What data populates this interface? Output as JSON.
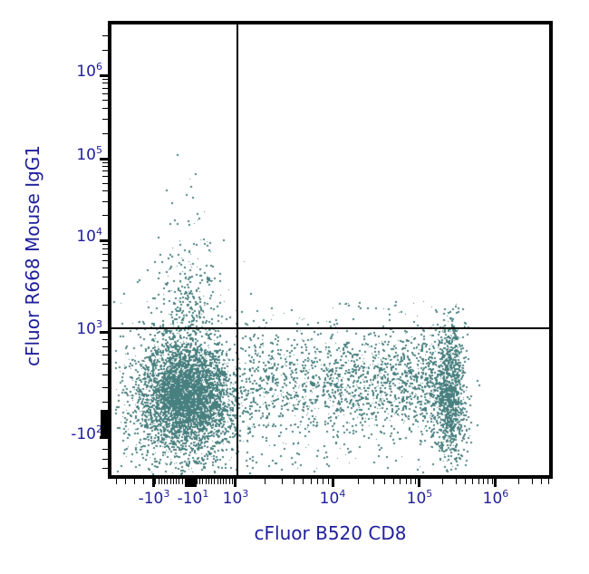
{
  "chart_data": {
    "type": "scatter",
    "subtype": "flow-cytometry-dot-plot",
    "title": "",
    "xlabel": "cFluor B520 CD8",
    "ylabel": "cFluor R668 Mouse IgG1",
    "x_scale": "biexponential",
    "y_scale": "biexponential",
    "grid": false,
    "legend": false,
    "point_color": "#487f7f",
    "axis_color": "#000000",
    "label_color": "#1f1f9c",
    "x_ticks": [
      {
        "base": "-10",
        "exp": "3",
        "frac": 0.0973
      },
      {
        "base": "-10",
        "exp": "1",
        "frac": 0.1863
      },
      {
        "base": "10",
        "exp": "3",
        "frac": 0.2836
      },
      {
        "base": "10",
        "exp": "4",
        "frac": 0.5052
      },
      {
        "base": "10",
        "exp": "5",
        "frac": 0.7039
      },
      {
        "base": "10",
        "exp": "6",
        "frac": 0.8778
      }
    ],
    "y_ticks": [
      {
        "base": "10",
        "exp": "6",
        "frac": 0.1127
      },
      {
        "base": "10",
        "exp": "5",
        "frac": 0.2978
      },
      {
        "base": "10",
        "exp": "4",
        "frac": 0.4789
      },
      {
        "base": "10",
        "exp": "3",
        "frac": 0.6841
      },
      {
        "base": "-10",
        "exp": "2",
        "frac": 0.9175
      }
    ],
    "quadrant_gate": {
      "x_frac": 0.2878,
      "y_frac": 0.674,
      "x_value": "1e3",
      "y_value": "1.2e3"
    },
    "populations": [
      {
        "name": "cd8neg-igg1neg-core",
        "type": "gauss",
        "cx": 0.168,
        "cy": 0.823,
        "sx": 0.054,
        "sy": 0.0624,
        "n": 4200
      },
      {
        "name": "cd8neg-halo",
        "type": "gauss",
        "cx": 0.168,
        "cy": 0.826,
        "sx": 0.096,
        "sy": 0.106,
        "n": 380
      },
      {
        "name": "igg1-upward-tail",
        "type": "tailup",
        "cx": 0.176,
        "sx": 0.036,
        "base_y": 0.686,
        "len": 0.111,
        "min_y": 0.29,
        "n": 270
      },
      {
        "name": "cd8-mid-band",
        "type": "band",
        "x0": 0.294,
        "x1": 0.739,
        "bias": 0.8,
        "cy": 0.795,
        "sy": 0.062,
        "y_min": 0.617,
        "y_max": 0.985,
        "n": 1600
      },
      {
        "name": "cd8-bright-cluster",
        "type": "gauss",
        "cx": 0.77,
        "cy": 0.815,
        "sx": 0.0186,
        "sy": 0.0765,
        "n": 1280,
        "y_min": 0.612,
        "y_max": 0.99
      },
      {
        "name": "above-gate-scatter",
        "type": "uniform",
        "x0": 0.3,
        "x1": 0.79,
        "y0": 0.614,
        "y1": 0.672,
        "n": 28
      },
      {
        "name": "bottom-scatter",
        "type": "uniform",
        "x0": 0.04,
        "x1": 0.8,
        "y0": 0.92,
        "y1": 0.995,
        "n": 70
      },
      {
        "name": "left-edge-scatter",
        "type": "uniform",
        "x0": 0.004,
        "x1": 0.055,
        "y0": 0.68,
        "y1": 0.99,
        "n": 28
      },
      {
        "name": "high-igg1-outliers",
        "type": "points",
        "pts": [
          [
            0.149,
            0.288
          ],
          [
            0.18,
            0.358
          ],
          [
            0.124,
            0.366
          ],
          [
            0.137,
            0.394
          ],
          [
            0.211,
            0.414
          ],
          [
            0.155,
            0.479
          ],
          [
            0.217,
            0.481
          ],
          [
            0.19,
            0.33
          ]
        ]
      }
    ]
  }
}
